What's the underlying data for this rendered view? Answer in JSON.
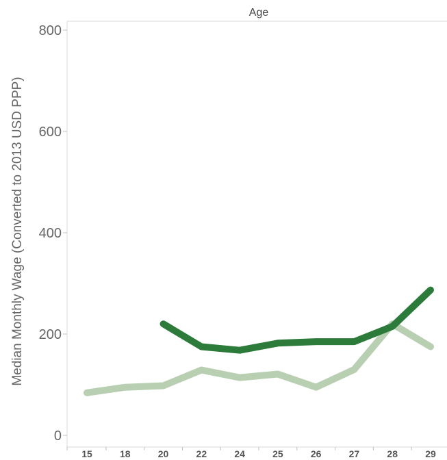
{
  "chart_data": {
    "type": "line",
    "title": "",
    "xlabel": "Age",
    "ylabel": "Median Monthly Wage (Converted to 2013 USD PPP)",
    "categories": [
      "15",
      "18",
      "20",
      "22",
      "24",
      "25",
      "26",
      "27",
      "28",
      "29"
    ],
    "ylim": [
      0,
      800
    ],
    "yticks": [
      "0",
      "200",
      "400",
      "600",
      "800"
    ],
    "grid": false,
    "series": [
      {
        "color": "#2c7b3a",
        "values": [
          null,
          null,
          220,
          175,
          168,
          182,
          185,
          185,
          215,
          287
        ]
      },
      {
        "color": "#b9cfb2",
        "values": [
          84,
          95,
          98,
          129,
          114,
          121,
          95,
          130,
          220,
          175
        ]
      }
    ]
  }
}
